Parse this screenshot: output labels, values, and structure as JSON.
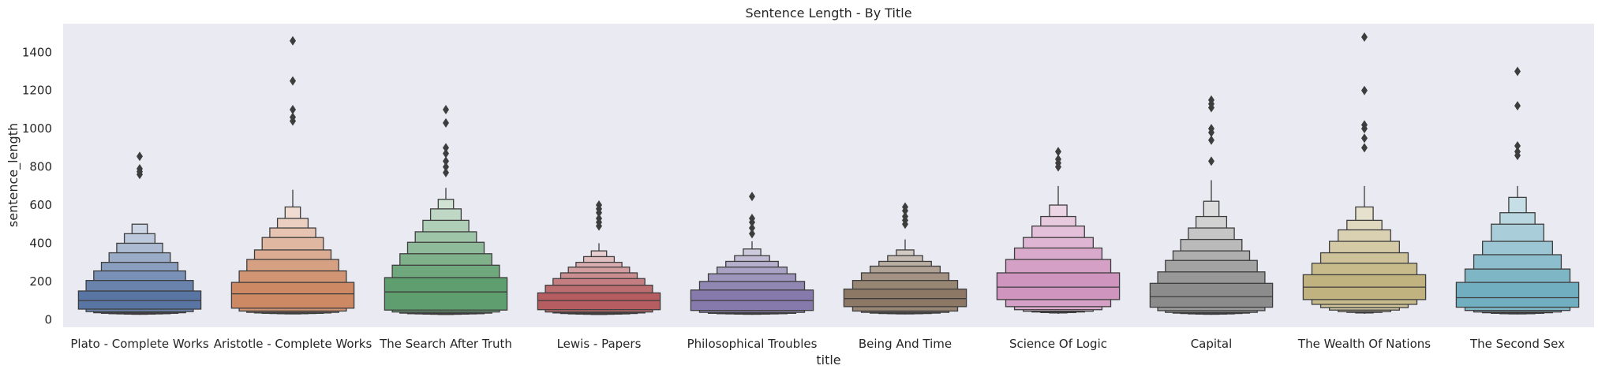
{
  "chart_data": {
    "type": "boxen",
    "title": "Sentence Length - By Title",
    "xlabel": "title",
    "ylabel": "sentence_length",
    "ylim": [
      -40,
      1550
    ],
    "yticks": [
      0,
      200,
      400,
      600,
      800,
      1000,
      1200,
      1400
    ],
    "grid": false,
    "background": "#eaeaf2",
    "categories": [
      "Plato - Complete Works",
      "Aristotle - Complete Works",
      "The Search After Truth",
      "Lewis - Papers",
      "Philosophical Troubles",
      "Being And Time",
      "Science Of Logic",
      "Capital",
      "The Wealth Of Nations",
      "The Second Sex"
    ],
    "series": [
      {
        "color": "#5875a4",
        "median": 100,
        "levels": [
          [
            55,
            150
          ],
          [
            42,
            205
          ],
          [
            36,
            255
          ],
          [
            33,
            300
          ],
          [
            31,
            350
          ],
          [
            30,
            400
          ],
          [
            29,
            450
          ],
          [
            28,
            500
          ]
        ],
        "whisker": [
          25,
          500
        ],
        "outliers": [
          760,
          775,
          790,
          855
        ]
      },
      {
        "color": "#cc8963",
        "median": 135,
        "levels": [
          [
            60,
            195
          ],
          [
            45,
            255
          ],
          [
            38,
            315
          ],
          [
            35,
            365
          ],
          [
            33,
            430
          ],
          [
            32,
            480
          ],
          [
            31,
            530
          ],
          [
            30,
            590
          ]
        ],
        "whisker": [
          28,
          680
        ],
        "outliers": [
          1040,
          1060,
          1100,
          1250,
          1460
        ]
      },
      {
        "color": "#5f9e6e",
        "median": 145,
        "levels": [
          [
            50,
            220
          ],
          [
            40,
            285
          ],
          [
            34,
            345
          ],
          [
            31,
            405
          ],
          [
            30,
            460
          ],
          [
            29,
            520
          ],
          [
            28,
            580
          ],
          [
            27,
            630
          ]
        ],
        "whisker": [
          25,
          690
        ],
        "outliers": [
          770,
          800,
          830,
          870,
          900,
          1030,
          1100
        ]
      },
      {
        "color": "#b55d60",
        "median": 100,
        "levels": [
          [
            52,
            140
          ],
          [
            40,
            180
          ],
          [
            35,
            215
          ],
          [
            32,
            245
          ],
          [
            30,
            275
          ],
          [
            29,
            300
          ],
          [
            28,
            330
          ],
          [
            27,
            360
          ]
        ],
        "whisker": [
          25,
          400
        ],
        "outliers": [
          490,
          510,
          530,
          560,
          580,
          600
        ]
      },
      {
        "color": "#857aab",
        "median": 100,
        "levels": [
          [
            48,
            155
          ],
          [
            38,
            200
          ],
          [
            33,
            240
          ],
          [
            31,
            275
          ],
          [
            30,
            305
          ],
          [
            29,
            335
          ],
          [
            28,
            370
          ]
        ],
        "whisker": [
          25,
          410
        ],
        "outliers": [
          450,
          480,
          510,
          530,
          645
        ]
      },
      {
        "color": "#8d7866",
        "median": 110,
        "levels": [
          [
            68,
            160
          ],
          [
            45,
            205
          ],
          [
            38,
            245
          ],
          [
            34,
            280
          ],
          [
            32,
            305
          ],
          [
            31,
            335
          ],
          [
            30,
            365
          ]
        ],
        "whisker": [
          27,
          420
        ],
        "outliers": [
          500,
          520,
          540,
          570,
          590
        ]
      },
      {
        "color": "#d095bf",
        "median": 170,
        "levels": [
          [
            105,
            245
          ],
          [
            68,
            315
          ],
          [
            52,
            375
          ],
          [
            44,
            430
          ],
          [
            40,
            490
          ],
          [
            37,
            540
          ],
          [
            35,
            600
          ]
        ],
        "whisker": [
          30,
          700
        ],
        "outliers": [
          800,
          820,
          840,
          880
        ]
      },
      {
        "color": "#8c8c8c",
        "median": 120,
        "levels": [
          [
            65,
            190
          ],
          [
            47,
            250
          ],
          [
            38,
            310
          ],
          [
            34,
            360
          ],
          [
            32,
            420
          ],
          [
            30,
            480
          ],
          [
            29,
            540
          ],
          [
            28,
            620
          ]
        ],
        "whisker": [
          25,
          730
        ],
        "outliers": [
          830,
          940,
          980,
          1000,
          1110,
          1130,
          1150
        ]
      },
      {
        "color": "#c1b37f",
        "median": 170,
        "levels": [
          [
            105,
            235
          ],
          [
            80,
            295
          ],
          [
            63,
            350
          ],
          [
            50,
            410
          ],
          [
            42,
            470
          ],
          [
            38,
            520
          ],
          [
            35,
            590
          ]
        ],
        "whisker": [
          30,
          700
        ],
        "outliers": [
          900,
          950,
          1000,
          1020,
          1200,
          1480
        ]
      },
      {
        "color": "#71aec0",
        "median": 115,
        "levels": [
          [
            65,
            195
          ],
          [
            48,
            265
          ],
          [
            40,
            340
          ],
          [
            36,
            410
          ],
          [
            33,
            500
          ],
          [
            31,
            560
          ],
          [
            30,
            640
          ]
        ],
        "whisker": [
          27,
          700
        ],
        "outliers": [
          860,
          880,
          910,
          1120,
          1300
        ]
      }
    ]
  }
}
